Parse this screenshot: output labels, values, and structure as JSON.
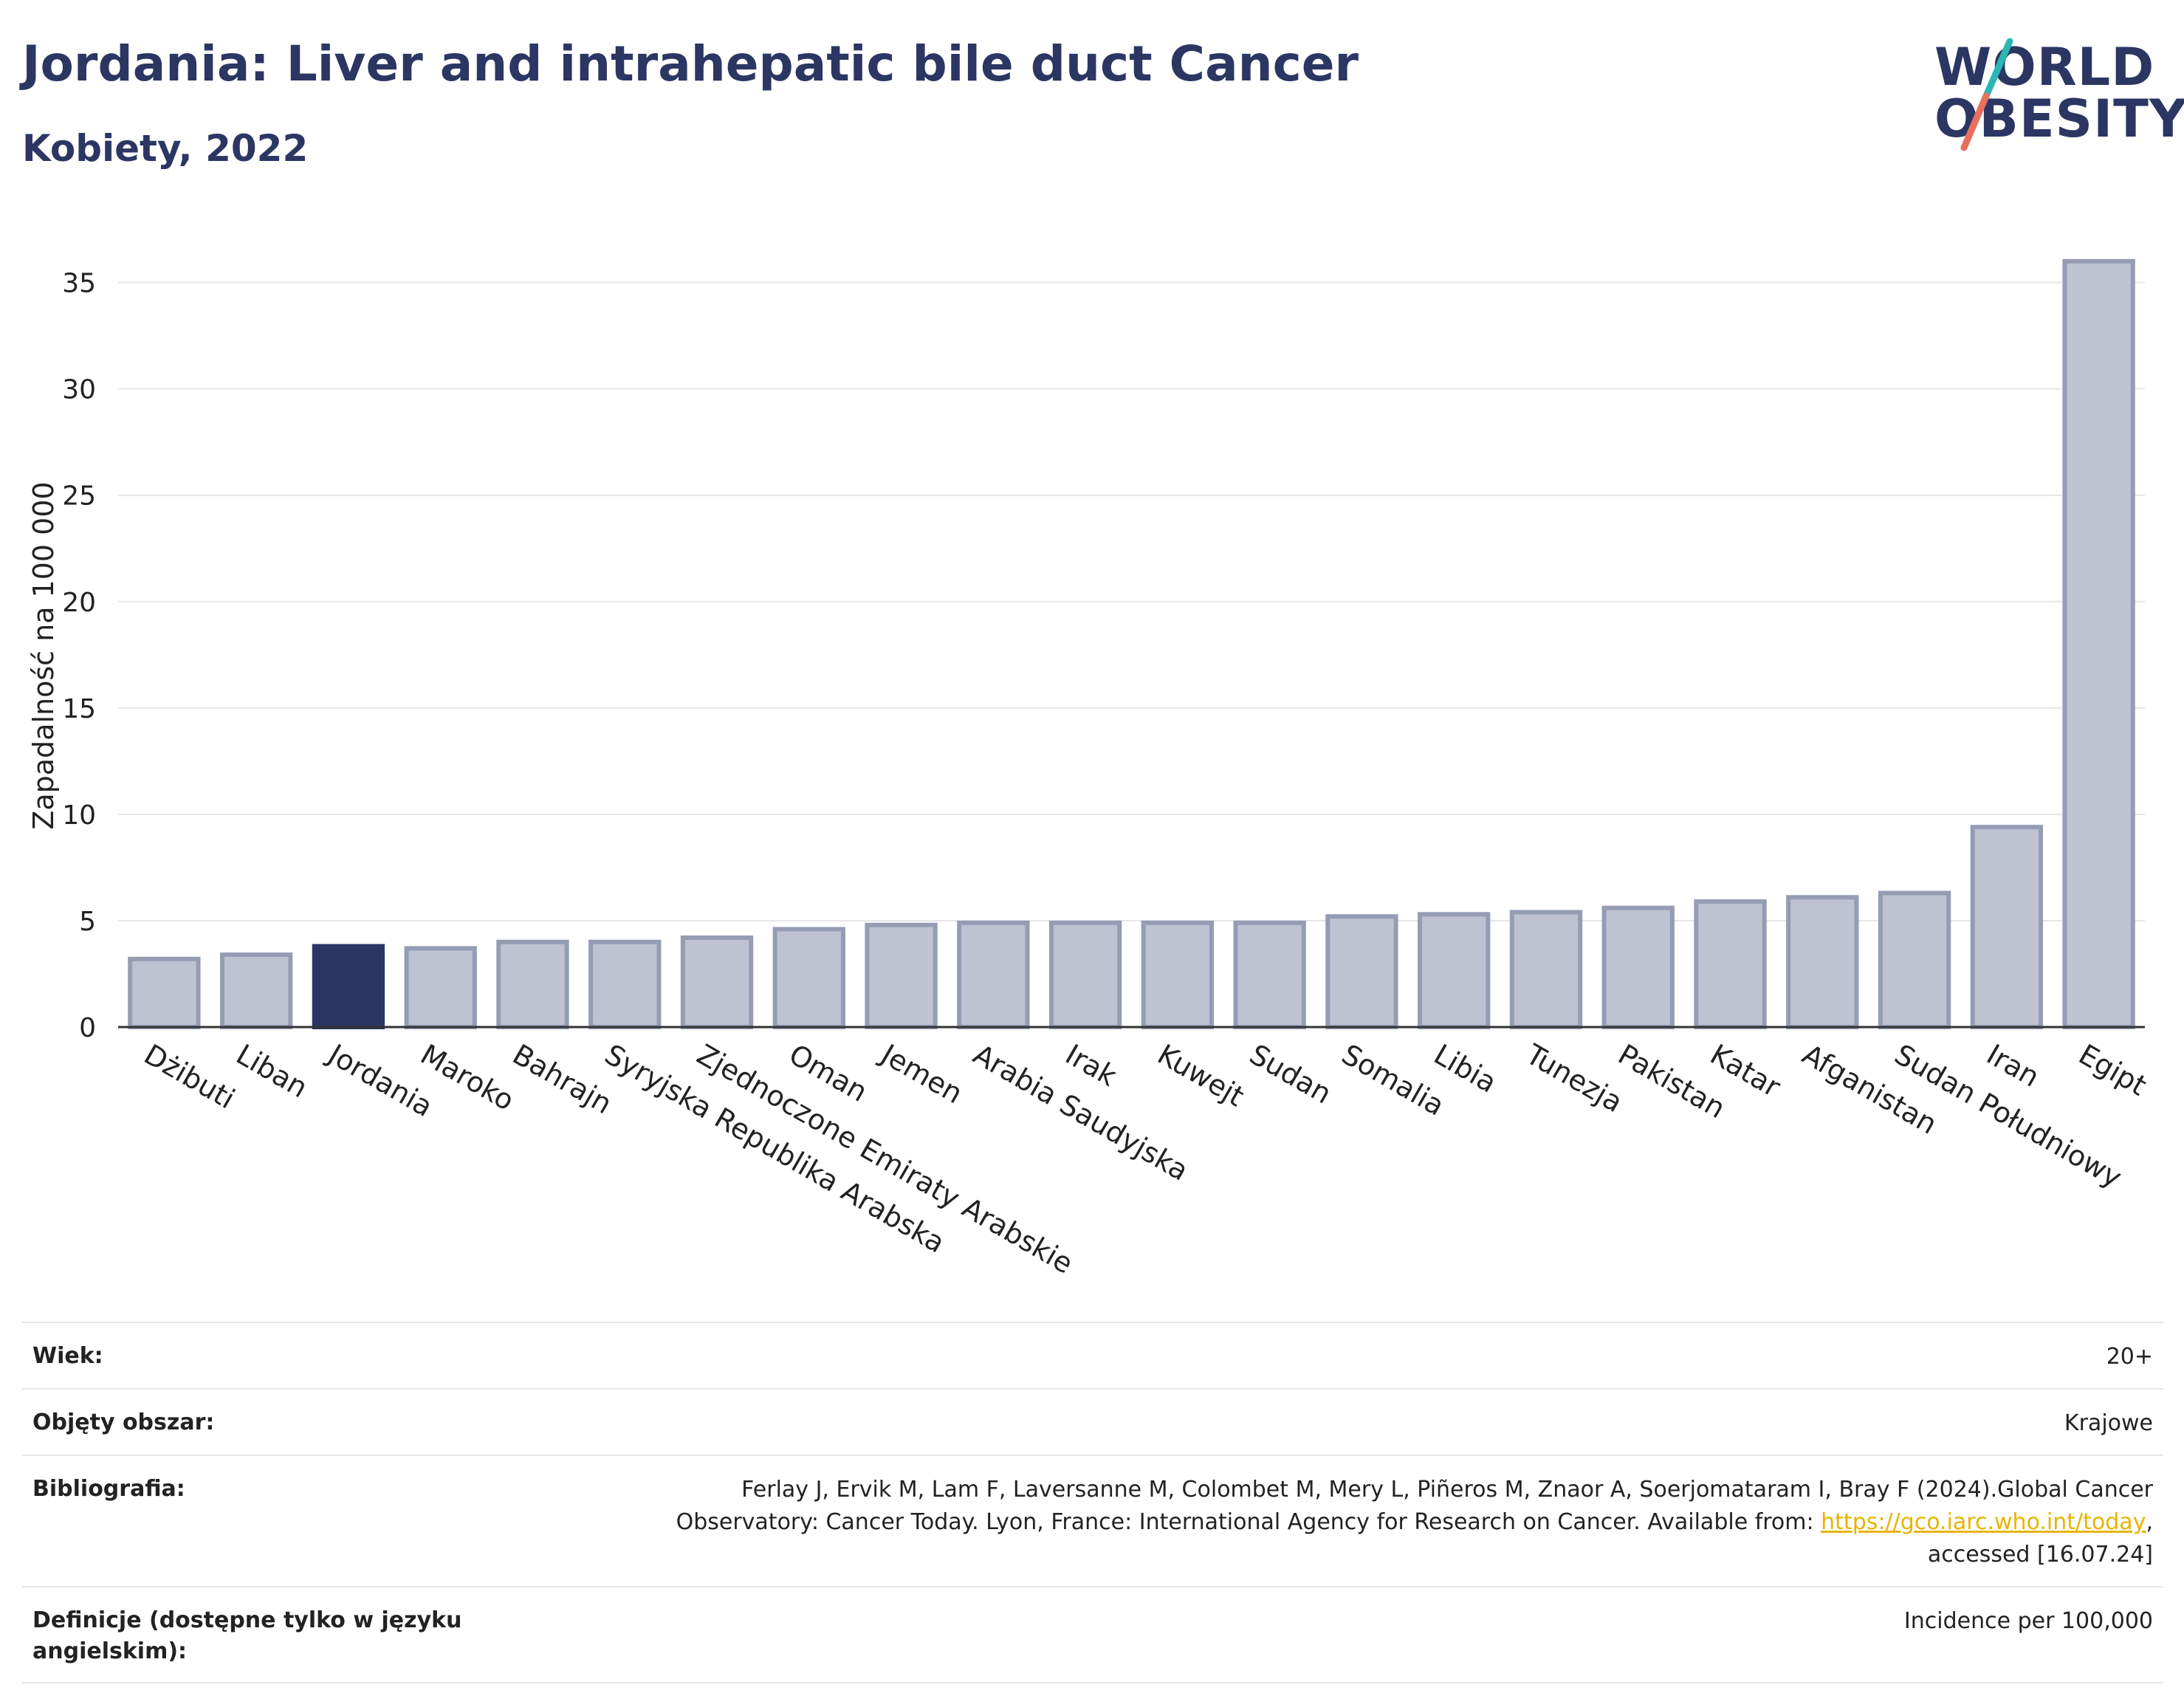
{
  "header": {
    "title": "Jordania: Liver and intrahepatic bile duct Cancer",
    "subtitle": "Kobiety, 2022"
  },
  "logo": {
    "line1": "WORLD",
    "line2": "OBESITY"
  },
  "colors": {
    "highlight": "#2b3663",
    "bar": "#bfc3d1",
    "bar_stroke": "#959cb3",
    "title": "#2b3663",
    "link": "#e8b400"
  },
  "chart_data": {
    "type": "bar",
    "ylabel": "Zapadalność na 100 000",
    "ylim": [
      0,
      37
    ],
    "yticks": [
      0,
      5,
      10,
      15,
      20,
      25,
      30,
      35
    ],
    "grid": true,
    "highlight": "Jordania",
    "categories": [
      "Dżibuti",
      "Liban",
      "Jordania",
      "Maroko",
      "Bahrajn",
      "Syryjska Republika Arabska",
      "Zjednoczone Emiraty Arabskie",
      "Oman",
      "Jemen",
      "Arabia Saudyjska",
      "Irak",
      "Kuwejt",
      "Sudan",
      "Somalia",
      "Libia",
      "Tunezja",
      "Pakistan",
      "Katar",
      "Afganistan",
      "Sudan Południowy",
      "Iran",
      "Egipt"
    ],
    "values": [
      3.2,
      3.4,
      3.8,
      3.7,
      4.0,
      4.0,
      4.2,
      4.6,
      4.8,
      4.9,
      4.9,
      4.9,
      4.9,
      5.2,
      5.3,
      5.4,
      5.6,
      5.9,
      6.1,
      6.3,
      9.4,
      36.0
    ]
  },
  "meta": {
    "rows": [
      {
        "label": "Wiek:",
        "value": "20+"
      },
      {
        "label": "Objęty obszar:",
        "value": "Krajowe"
      },
      {
        "label": "Bibliografia:",
        "value_pre": "Ferlay J, Ervik M, Lam F, Laversanne M, Colombet M, Mery L, Piñeros M, Znaor A, Soerjomataram I, Bray F (2024).Global Cancer Observatory: Cancer Today. Lyon, France: International Agency for Research on Cancer. Available from: ",
        "link": "https://gco.iarc.who.int/today",
        "value_post": ", accessed [16.07.24]"
      },
      {
        "label": "Definicje (dostępne tylko w języku angielskim):",
        "value": "Incidence per 100,000"
      }
    ]
  }
}
